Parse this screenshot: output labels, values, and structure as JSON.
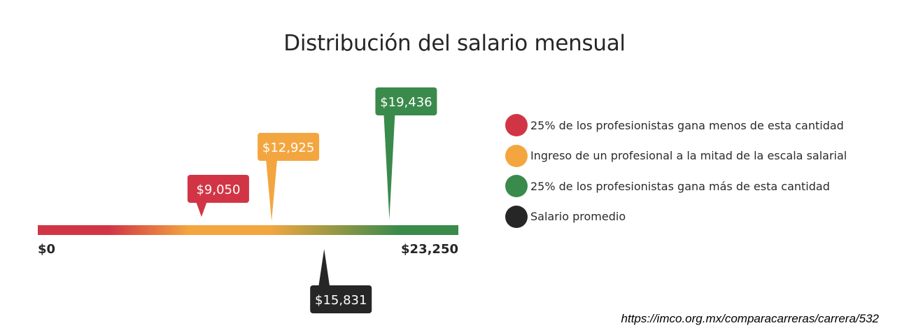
{
  "title": "Distribución del salario mensual",
  "chart_data": {
    "type": "salary-range",
    "axis": {
      "min_label": "$0",
      "max_label": "$23,250",
      "min": 0,
      "max": 23250
    },
    "gradient_colors": [
      "#d13545",
      "#d13545",
      "#f3a640",
      "#f3a640",
      "#3a8a4b",
      "#3a8a4b"
    ],
    "markers": [
      {
        "key": "p25",
        "value": 9050,
        "label": "$9,050",
        "color": "#d13545",
        "position": "above"
      },
      {
        "key": "median",
        "value": 12925,
        "label": "$12,925",
        "color": "#f3a640",
        "position": "above"
      },
      {
        "key": "p75",
        "value": 19436,
        "label": "$19,436",
        "color": "#3a8a4b",
        "position": "above"
      },
      {
        "key": "mean",
        "value": 15831,
        "label": "$15,831",
        "color": "#262626",
        "position": "below"
      }
    ]
  },
  "legend": [
    {
      "color": "#d13545",
      "label": "25% de los profesionistas gana menos de esta cantidad"
    },
    {
      "color": "#f3a640",
      "label": "Ingreso de un profesional a la mitad de la escala salarial"
    },
    {
      "color": "#3a8a4b",
      "label": "25% de los profesionistas gana más de esta cantidad"
    },
    {
      "color": "#262626",
      "label": "Salario promedio"
    }
  ],
  "source": "https://imco.org.mx/comparacarreras/carrera/532"
}
